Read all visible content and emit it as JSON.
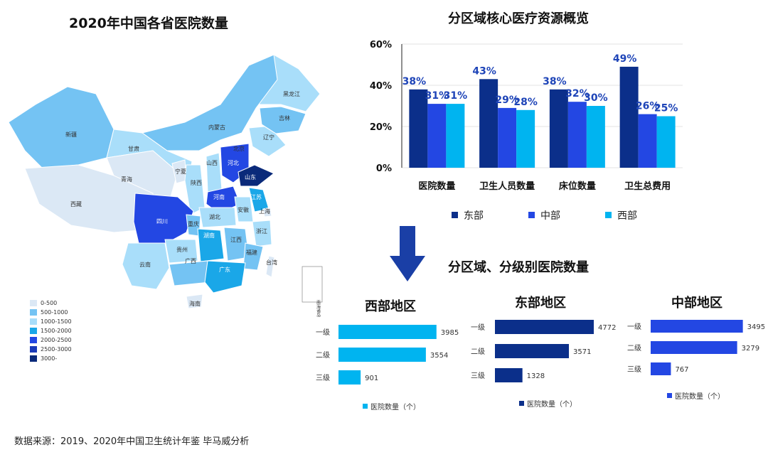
{
  "map": {
    "title": "2020年中国各省医院数量",
    "legend": [
      {
        "label": "0-500",
        "color": "#dbe8f5"
      },
      {
        "label": "500-1000",
        "color": "#74c3f3"
      },
      {
        "label": "1000-1500",
        "color": "#a9defa"
      },
      {
        "label": "1500-2000",
        "color": "#1aa7e8"
      },
      {
        "label": "2000-2500",
        "color": "#2347e3"
      },
      {
        "label": "2500-3000",
        "color": "#1a3ab8"
      },
      {
        "label": "3000-",
        "color": "#0a2a7a"
      }
    ],
    "provinces": [
      {
        "name": "黑龙江",
        "band": "1000-1500"
      },
      {
        "name": "吉林",
        "band": "500-1000"
      },
      {
        "name": "辽宁",
        "band": "1000-1500"
      },
      {
        "name": "内蒙古",
        "band": "500-1000"
      },
      {
        "name": "新疆",
        "band": "500-1000"
      },
      {
        "name": "甘肃",
        "band": "1000-1500"
      },
      {
        "name": "青海",
        "band": "0-500"
      },
      {
        "name": "西藏",
        "band": "0-500"
      },
      {
        "name": "宁夏",
        "band": "0-500"
      },
      {
        "name": "陕西",
        "band": "1000-1500"
      },
      {
        "name": "山西",
        "band": "1000-1500"
      },
      {
        "name": "北京",
        "band": "500-1000"
      },
      {
        "name": "河北",
        "band": "2000-2500"
      },
      {
        "name": "山东",
        "band": "3000-"
      },
      {
        "name": "河南",
        "band": "2000-2500"
      },
      {
        "name": "江苏",
        "band": "1500-2000"
      },
      {
        "name": "上海",
        "band": "0-500"
      },
      {
        "name": "安徽",
        "band": "1000-1500"
      },
      {
        "name": "湖北",
        "band": "1000-1500"
      },
      {
        "name": "四川",
        "band": "2000-2500"
      },
      {
        "name": "重庆",
        "band": "500-1000"
      },
      {
        "name": "浙江",
        "band": "1000-1500"
      },
      {
        "name": "湖南",
        "band": "1500-2000"
      },
      {
        "name": "江西",
        "band": "500-1000"
      },
      {
        "name": "福建",
        "band": "500-1000"
      },
      {
        "name": "贵州",
        "band": "1000-1500"
      },
      {
        "name": "云南",
        "band": "1000-1500"
      },
      {
        "name": "广西",
        "band": "500-1000"
      },
      {
        "name": "广东",
        "band": "1500-2000"
      },
      {
        "name": "台湾",
        "band": "0-500"
      },
      {
        "name": "海南",
        "band": "0-500"
      }
    ],
    "inset_label": "南海诸岛"
  },
  "bar": {
    "title": "分区域核心医疗资源概览"
  },
  "arrow_color": "#1a3fa6",
  "subtitle": "分区域、分级别医院数量",
  "source": "数据来源：2019、2020年中国卫生统计年鉴 毕马威分析",
  "chart_data": [
    {
      "type": "bar",
      "title": "分区域核心医疗资源概览",
      "categories": [
        "医院数量",
        "卫生人员数量",
        "床位数量",
        "卫生总费用"
      ],
      "series": [
        {
          "name": "东部",
          "color": "#0b2f8a",
          "values": [
            38,
            43,
            38,
            49
          ]
        },
        {
          "name": "中部",
          "color": "#2347e3",
          "values": [
            31,
            29,
            32,
            26
          ]
        },
        {
          "name": "西部",
          "color": "#00b4f0",
          "values": [
            31,
            28,
            30,
            25
          ]
        }
      ],
      "ylim": [
        0,
        60
      ],
      "yticks": [
        "0%",
        "20%",
        "40%",
        "60%"
      ],
      "value_suffix": "%",
      "legend_position": "bottom"
    },
    {
      "type": "bar",
      "orientation": "horizontal",
      "title": "西部地区",
      "categories": [
        "一级",
        "二级",
        "三级"
      ],
      "series": [
        {
          "name": "医院数量（个）",
          "color": "#00b4f0",
          "values": [
            3985,
            3554,
            901
          ]
        }
      ]
    },
    {
      "type": "bar",
      "orientation": "horizontal",
      "title": "东部地区",
      "categories": [
        "一级",
        "二级",
        "三级"
      ],
      "series": [
        {
          "name": "医院数量（个）",
          "color": "#0b2f8a",
          "values": [
            4772,
            3571,
            1328
          ]
        }
      ]
    },
    {
      "type": "bar",
      "orientation": "horizontal",
      "title": "中部地区",
      "categories": [
        "一级",
        "二级",
        "三级"
      ],
      "series": [
        {
          "name": "医院数量（个）",
          "color": "#2347e3",
          "values": [
            3495,
            3279,
            767
          ]
        }
      ]
    }
  ]
}
